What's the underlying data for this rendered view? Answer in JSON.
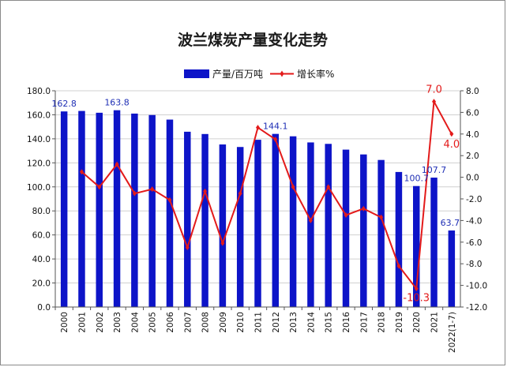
{
  "chart_data": {
    "type": "bar+line",
    "title": "波兰煤炭产量变化走势",
    "categories": [
      "2000",
      "2001",
      "2002",
      "2003",
      "2004",
      "2005",
      "2006",
      "2007",
      "2008",
      "2009",
      "2010",
      "2011",
      "2012",
      "2013",
      "2014",
      "2015",
      "2016",
      "2017",
      "2018",
      "2019",
      "2020",
      "2021",
      "2022(1-7)"
    ],
    "series": [
      {
        "name": "产量/百万吨",
        "type": "bar",
        "axis": "left",
        "color": "#0d14c8",
        "values": [
          162.8,
          163.2,
          161.7,
          163.8,
          161.0,
          159.8,
          156.0,
          145.9,
          144.0,
          135.3,
          133.2,
          139.2,
          144.1,
          142.1,
          137.0,
          135.8,
          131.0,
          127.0,
          122.4,
          112.4,
          100.7,
          107.7,
          63.7
        ]
      },
      {
        "name": "增长率%",
        "type": "line",
        "axis": "right",
        "color": "#e31a1a",
        "values": [
          null,
          0.5,
          -0.9,
          1.2,
          -1.5,
          -1.1,
          -2.1,
          -6.5,
          -1.3,
          -6.1,
          -1.5,
          4.6,
          3.5,
          -0.9,
          -4.0,
          -0.9,
          -3.5,
          -2.9,
          -3.7,
          -8.2,
          -10.3,
          7.0,
          4.0
        ]
      }
    ],
    "labels_bar": {
      "0": "162.8",
      "3": "163.8",
      "12": "144.1",
      "20": "100.7",
      "21": "107.7",
      "22": "63.7"
    },
    "labels_line": {
      "20": "-10.3",
      "21": "7.0",
      "22": "4.0"
    },
    "ylim_left": [
      0,
      180
    ],
    "yticks_left": [
      "0.0",
      "20.0",
      "40.0",
      "60.0",
      "80.0",
      "100.0",
      "120.0",
      "140.0",
      "160.0",
      "180.0"
    ],
    "ylim_right": [
      -12,
      8
    ],
    "yticks_right": [
      "-12.0",
      "-10.0",
      "-8.0",
      "-6.0",
      "-4.0",
      "-2.0",
      "0.0",
      "2.0",
      "4.0",
      "6.0",
      "8.0"
    ],
    "grid": true,
    "legend": "top"
  }
}
